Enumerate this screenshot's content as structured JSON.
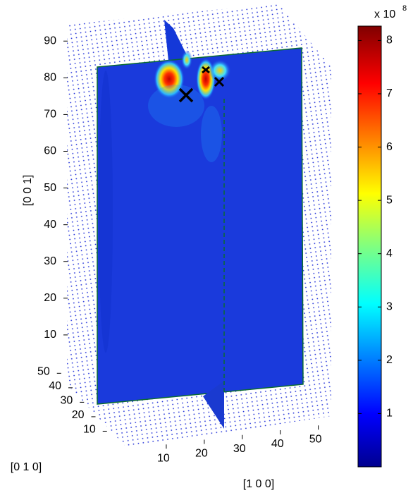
{
  "chart_data": {
    "type": "slice3d",
    "xlabel": "[1 0 0]",
    "ylabel": "[0 1 0]",
    "zlabel": "[0 0 1]",
    "xlim": [
      0,
      56
    ],
    "xticks": [
      10,
      20,
      30,
      40,
      50
    ],
    "ylim": [
      0,
      56
    ],
    "yticks": [
      10,
      20,
      30,
      40,
      50
    ],
    "zlim": [
      0,
      96
    ],
    "zticks": [
      10,
      20,
      30,
      40,
      50,
      60,
      70,
      80,
      90
    ],
    "colormap": "jet",
    "clim": [
      0,
      8.27
    ],
    "cticks": [
      1,
      2,
      3,
      4,
      5,
      6,
      7,
      8
    ],
    "colorbar_scale_label": "x 10",
    "colorbar_scale_exponent": "8"
  }
}
